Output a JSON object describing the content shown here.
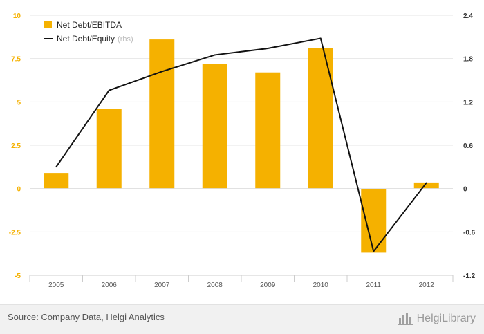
{
  "chart_data": {
    "type": "bar+line",
    "categories": [
      "2005",
      "2006",
      "2007",
      "2008",
      "2009",
      "2010",
      "2011",
      "2012"
    ],
    "series": [
      {
        "name": "Net Debt/EBITDA",
        "type": "bar",
        "axis": "left",
        "color": "#f5b100",
        "values": [
          0.9,
          4.6,
          8.6,
          7.2,
          6.7,
          8.1,
          -3.7,
          0.35
        ]
      },
      {
        "name": "Net Debt/Equity",
        "name_suffix": "(rhs)",
        "type": "line",
        "axis": "right",
        "color": "#111111",
        "values": [
          0.3,
          1.36,
          1.62,
          1.85,
          1.94,
          2.08,
          -0.87,
          0.08
        ]
      }
    ],
    "y_left": {
      "min": -5,
      "max": 10,
      "ticks": [
        "10",
        "7.5",
        "5",
        "2.5",
        "0",
        "-2.5",
        "-5"
      ],
      "tick_values": [
        10,
        7.5,
        5,
        2.5,
        0,
        -2.5,
        -5
      ],
      "color": "#f5b100"
    },
    "y_right": {
      "min": -1.2,
      "max": 2.4,
      "ticks": [
        "2.4",
        "1.8",
        "1.2",
        "0.6",
        "0",
        "-0.6",
        "-1.2"
      ],
      "tick_values": [
        2.4,
        1.8,
        1.2,
        0.6,
        0,
        -0.6,
        -1.2
      ]
    },
    "grid": true,
    "legend": "top-left"
  },
  "footer": {
    "source": "Source: Company Data, Helgi Analytics",
    "brand": "HelgiLibrary"
  }
}
